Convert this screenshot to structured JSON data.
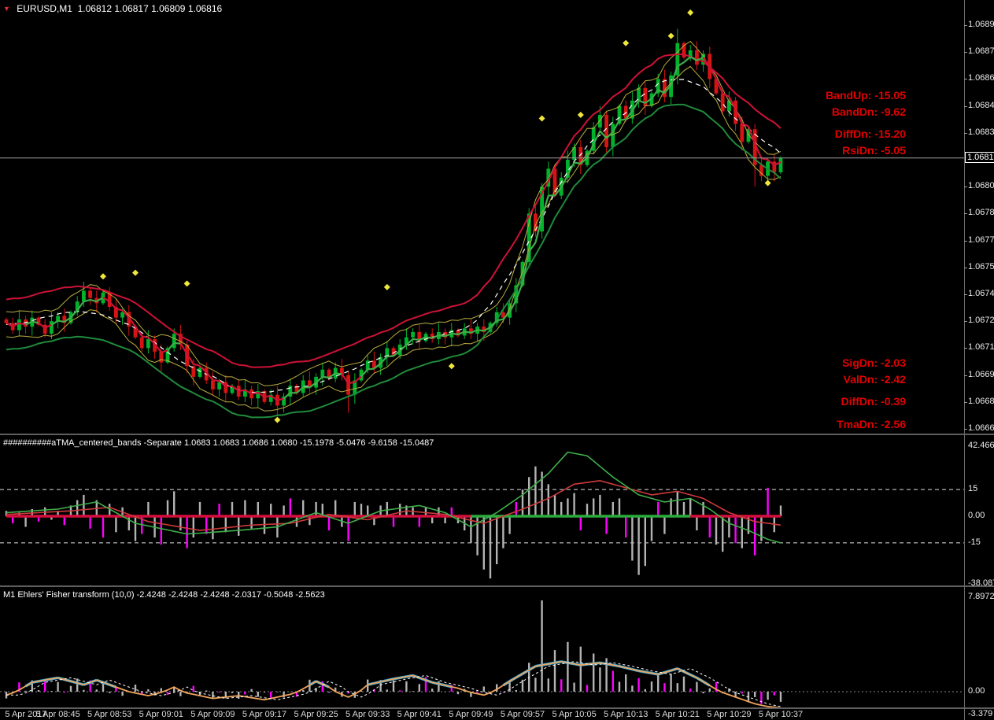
{
  "main_panel": {
    "symbol": "EURUSD,M1",
    "ohlc": {
      "open": "1.06812",
      "high": "1.06817",
      "low": "1.06809",
      "close": "1.06816"
    },
    "price_scale": [
      "1.06890",
      "1.06875",
      "1.06860",
      "1.06845",
      "1.06830",
      "1.06800",
      "1.06785",
      "1.06770",
      "1.06755",
      "1.06740",
      "1.06725",
      "1.06710",
      "1.06695",
      "1.06680",
      "1.06665"
    ],
    "price_tag": "1.06816",
    "annotations": [
      "BandUp: -15.05",
      "BandDn: -9.62",
      "DiffDn: -15.20",
      "RsiDn: -5.05",
      "SigDn: -2.03",
      "ValDn: -2.42",
      "DiffDn: -0.39",
      "TmaDn: -2.56"
    ]
  },
  "tma_panel": {
    "title": "##########aTMA_centered_bands -Separate 1.0683 1.0683 1.0686 1.0680 -15.1978 -5.0476 -9.6158 -15.0487",
    "scale": [
      "42.4669",
      "15",
      "0.00",
      "-15",
      "-38.0876"
    ]
  },
  "fisher_panel": {
    "title": "M1 Ehlers' Fisher transform (10,0) -2.4248 -2.4248 -2.4248 -2.0317 -0.5048 -2.5623",
    "scale": [
      "7.8972",
      "0.00",
      "-3.379"
    ]
  },
  "time_axis": [
    "5 Apr 2017",
    "5 Apr 08:45",
    "5 Apr 08:53",
    "5 Apr 09:01",
    "5 Apr 09:09",
    "5 Apr 09:17",
    "5 Apr 09:25",
    "5 Apr 09:33",
    "5 Apr 09:41",
    "5 Apr 09:49",
    "5 Apr 09:57",
    "5 Apr 10:05",
    "5 Apr 10:13",
    "5 Apr 10:21",
    "5 Apr 10:29",
    "5 Apr 10:37"
  ],
  "colors": {
    "background": "#000000",
    "bull": "#00b32c",
    "bear": "#d61414",
    "band_red": "#cc1236",
    "band_green": "#1f8b3c",
    "yellow": "#b9ae3c",
    "center_dashed": "#ffffff",
    "diamond": "#efe73a",
    "hist_gray": "#b3b3b3",
    "hist_magenta": "#ff00ff",
    "tma_red_line": "#cd3a3a",
    "tma_green_line": "#3fae4a",
    "zero_red": "#d40f3c",
    "zero_green": "#2bab3c",
    "fisher_orange": "#f0a45c",
    "fisher_cyan": "#35aade",
    "annotation_red": "#e10000",
    "scale_text": "#ececec",
    "price_line": "#9e9e9e"
  },
  "chart_data": [
    {
      "type": "candlestick",
      "name": "EURUSD M1",
      "time_start": "5 Apr 08:37",
      "interval_minutes": 1,
      "price_axis": {
        "top": 1.0689,
        "bottom": 1.06665,
        "label_step": 0.00015
      },
      "bid": 1.06816,
      "first_open_pipettes": 6726,
      "closes_pipettes": [
        6724,
        6720,
        6726,
        6722,
        6727,
        6723,
        6718,
        6725,
        6728,
        6724,
        6730,
        6736,
        6742,
        6738,
        6735,
        6741,
        6733,
        6727,
        6730,
        6722,
        6716,
        6710,
        6715,
        6708,
        6702,
        6710,
        6718,
        6712,
        6700,
        6694,
        6699,
        6692,
        6687,
        6691,
        6685,
        6689,
        6683,
        6687,
        6682,
        6686,
        6680,
        6684,
        6678,
        6683,
        6689,
        6685,
        6692,
        6688,
        6694,
        6698,
        6693,
        6699,
        6695,
        6684,
        6692,
        6698,
        6703,
        6699,
        6705,
        6710,
        6706,
        6712,
        6716,
        6719,
        6714,
        6718,
        6715,
        6719,
        6716,
        6720,
        6717,
        6721,
        6718,
        6722,
        6719,
        6724,
        6730,
        6727,
        6735,
        6745,
        6758,
        6785,
        6775,
        6800,
        6810,
        6795,
        6805,
        6815,
        6822,
        6812,
        6820,
        6833,
        6840,
        6822,
        6835,
        6845,
        6838,
        6848,
        6855,
        6845,
        6852,
        6860,
        6850,
        6862,
        6880,
        6872,
        6876,
        6868,
        6874,
        6860,
        6852,
        6842,
        6848,
        6835,
        6825,
        6832,
        6812,
        6806,
        6814,
        6808,
        6816
      ],
      "wick_overrides": {
        "42": {
          "low": 6672
        },
        "53": {
          "low": 6674
        },
        "81": {
          "high": 6788
        },
        "104": {
          "high": 6888
        },
        "116": {
          "low": 6800
        }
      },
      "bands": {
        "offset_pipettes": 14,
        "yellow_offset_pipettes": 7
      },
      "diamond_markers": [
        {
          "i": 15,
          "p": 1.0675
        },
        {
          "i": 20,
          "p": 1.06752
        },
        {
          "i": 28,
          "p": 1.06746
        },
        {
          "i": 42,
          "p": 1.0667
        },
        {
          "i": 59,
          "p": 1.06744
        },
        {
          "i": 69,
          "p": 1.067
        },
        {
          "i": 83,
          "p": 1.06838
        },
        {
          "i": 89,
          "p": 1.0684
        },
        {
          "i": 96,
          "p": 1.0688
        },
        {
          "i": 103,
          "p": 1.06884
        },
        {
          "i": 106,
          "p": 1.06897
        },
        {
          "i": 118,
          "p": 1.06802
        }
      ]
    },
    {
      "type": "bar",
      "name": "aTMA_centered_bands -Separate",
      "ylim": [
        -38.0876,
        42.4669
      ],
      "levels": [
        15,
        -15
      ],
      "values": [
        3,
        -4,
        2,
        -6,
        4,
        -3,
        5,
        -2,
        3,
        -5,
        6,
        9,
        12,
        -7,
        9,
        -12,
        7,
        -9,
        5,
        -8,
        -14,
        -10,
        8,
        -12,
        -16,
        9,
        14,
        -8,
        -18,
        -12,
        8,
        -10,
        -13,
        7,
        -9,
        8,
        -11,
        9,
        -7,
        8,
        -10,
        7,
        -12,
        6,
        10,
        -6,
        9,
        -5,
        8,
        7,
        -8,
        9,
        -6,
        -14,
        8,
        7,
        6,
        -5,
        6,
        8,
        -6,
        7,
        6,
        5,
        -6,
        5,
        -4,
        5,
        -4,
        5,
        -4,
        -8,
        -15,
        -22,
        -30,
        -35,
        -27,
        -18,
        -10,
        8,
        15,
        22,
        28,
        25,
        18,
        12,
        8,
        10,
        13,
        -8,
        7,
        10,
        12,
        -10,
        8,
        10,
        -12,
        -25,
        -33,
        -28,
        -14,
        8,
        -10,
        10,
        14,
        8,
        10,
        -8,
        8,
        -12,
        -16,
        -20,
        -12,
        -15,
        -18,
        -10,
        -22,
        -14,
        16,
        -9,
        6
      ],
      "magenta_indices": [
        1,
        5,
        9,
        13,
        15,
        21,
        24,
        28,
        31,
        33,
        44,
        50,
        53,
        60,
        64,
        69,
        79,
        89,
        93,
        96,
        101,
        109,
        113,
        116,
        118
      ],
      "green_line_keyframes": [
        [
          0,
          2
        ],
        [
          8,
          4
        ],
        [
          14,
          8
        ],
        [
          20,
          -4
        ],
        [
          28,
          -10
        ],
        [
          36,
          -8
        ],
        [
          42,
          -6
        ],
        [
          48,
          2
        ],
        [
          53,
          -4
        ],
        [
          58,
          3
        ],
        [
          64,
          6
        ],
        [
          68,
          2
        ],
        [
          72,
          -6
        ],
        [
          76,
          2
        ],
        [
          80,
          12
        ],
        [
          84,
          24
        ],
        [
          87,
          36
        ],
        [
          90,
          34
        ],
        [
          94,
          22
        ],
        [
          98,
          12
        ],
        [
          102,
          8
        ],
        [
          106,
          10
        ],
        [
          109,
          4
        ],
        [
          112,
          -4
        ],
        [
          115,
          -8
        ],
        [
          118,
          -13
        ],
        [
          120,
          -15
        ]
      ],
      "red_line_keyframes": [
        [
          0,
          1
        ],
        [
          10,
          3
        ],
        [
          16,
          5
        ],
        [
          22,
          -3
        ],
        [
          30,
          -8
        ],
        [
          38,
          -5
        ],
        [
          44,
          -4
        ],
        [
          50,
          1
        ],
        [
          56,
          -2
        ],
        [
          62,
          3
        ],
        [
          68,
          1
        ],
        [
          74,
          -4
        ],
        [
          80,
          4
        ],
        [
          84,
          10
        ],
        [
          88,
          18
        ],
        [
          92,
          20
        ],
        [
          96,
          16
        ],
        [
          100,
          12
        ],
        [
          104,
          14
        ],
        [
          108,
          10
        ],
        [
          112,
          2
        ],
        [
          116,
          -3
        ],
        [
          120,
          -5
        ]
      ],
      "zero_segments": [
        {
          "from": 0,
          "to": 72,
          "color": "red"
        },
        {
          "from": 72,
          "to": 106,
          "color": "green"
        },
        {
          "from": 106,
          "to": 120,
          "color": "red"
        }
      ]
    },
    {
      "type": "line",
      "name": "Ehlers Fisher transform (10,0)",
      "ylim": [
        -3.379,
        7.8972
      ],
      "fisher_keyframes": [
        [
          0,
          -0.5
        ],
        [
          4,
          0.8
        ],
        [
          8,
          1.2
        ],
        [
          12,
          0.6
        ],
        [
          14,
          1.0
        ],
        [
          18,
          0.2
        ],
        [
          22,
          -0.6
        ],
        [
          26,
          0.4
        ],
        [
          28,
          -0.2
        ],
        [
          32,
          -1.0
        ],
        [
          36,
          -0.6
        ],
        [
          40,
          -1.2
        ],
        [
          44,
          -0.4
        ],
        [
          48,
          0.9
        ],
        [
          50,
          0.4
        ],
        [
          53,
          -0.8
        ],
        [
          56,
          0.6
        ],
        [
          60,
          1.1
        ],
        [
          63,
          1.4
        ],
        [
          66,
          0.8
        ],
        [
          70,
          0.3
        ],
        [
          74,
          -0.5
        ],
        [
          78,
          0.9
        ],
        [
          82,
          2.2
        ],
        [
          86,
          2.6
        ],
        [
          89,
          2.3
        ],
        [
          92,
          2.5
        ],
        [
          95,
          2.2
        ],
        [
          98,
          1.8
        ],
        [
          101,
          1.5
        ],
        [
          104,
          2.0
        ],
        [
          107,
          1.2
        ],
        [
          110,
          0.2
        ],
        [
          113,
          -0.8
        ],
        [
          116,
          -1.8
        ],
        [
          118,
          -2.2
        ],
        [
          120,
          -2.4
        ]
      ],
      "trigger_shift_bars": 2,
      "cyan_threshold": 0.35,
      "bar_scale": 0.55,
      "bar_overrides": {
        "81": 2.5,
        "83": 7.9,
        "85": 3.6,
        "87": 4.3,
        "89": 3.9,
        "91": 3.3,
        "93": 2.9
      },
      "magenta_indices": [
        2,
        6,
        9,
        13,
        17,
        21,
        25,
        29,
        33,
        37,
        41,
        45,
        49,
        53,
        57,
        61,
        65,
        69,
        73,
        77,
        86,
        90,
        94,
        98,
        102,
        106,
        110,
        114,
        117,
        119
      ]
    }
  ]
}
